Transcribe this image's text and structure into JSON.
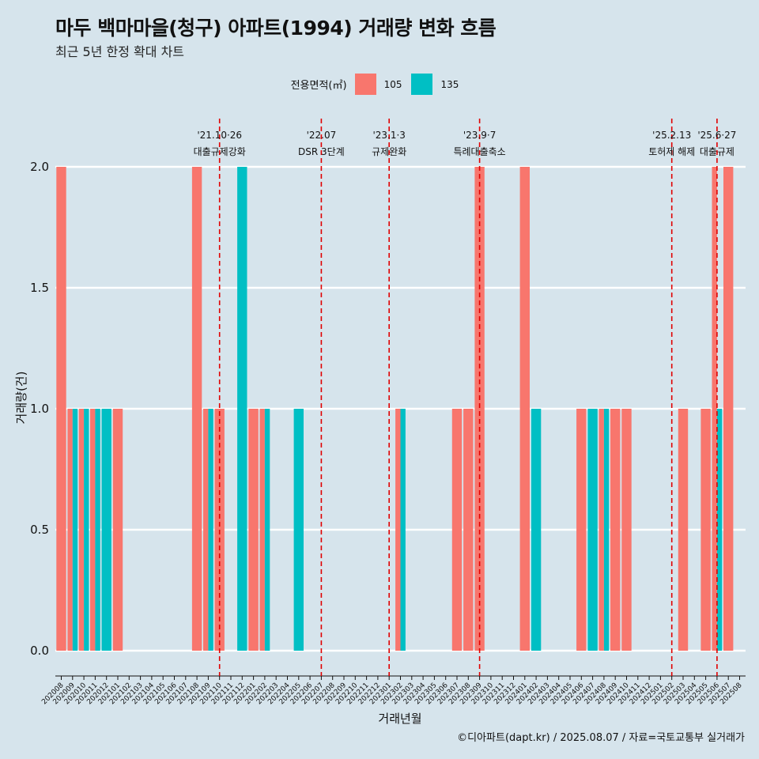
{
  "title": "마두 백마마을(청구) 아파트(1994) 거래량 변화 흐름",
  "subtitle": "최근 5년 한정 확대 차트",
  "legend": {
    "title": "전용면적(㎡)",
    "items": [
      {
        "label": "105",
        "color": "#F8766D"
      },
      {
        "label": "135",
        "color": "#00BFC4"
      }
    ]
  },
  "caption": "©디아파트(dapt.kr) / 2025.08.07 / 자료=국토교통부 실거래가",
  "chart_data": {
    "type": "bar",
    "xlabel": "거래년월",
    "ylabel": "거래량(건)",
    "ylim": [
      0,
      2
    ],
    "yticks": [
      "0.0",
      "0.5",
      "1.0",
      "1.5",
      "2.0"
    ],
    "grid": true,
    "legend_position": "top",
    "categories": [
      "202008",
      "202009",
      "202010",
      "202011",
      "202012",
      "202101",
      "202102",
      "202103",
      "202104",
      "202105",
      "202106",
      "202107",
      "202108",
      "202109",
      "202110",
      "202111",
      "202112",
      "202201",
      "202202",
      "202203",
      "202204",
      "202205",
      "202206",
      "202207",
      "202208",
      "202209",
      "202210",
      "202211",
      "202212",
      "202301",
      "202302",
      "202303",
      "202304",
      "202305",
      "202306",
      "202307",
      "202308",
      "202309",
      "202310",
      "202311",
      "202312",
      "202401",
      "202402",
      "202403",
      "202404",
      "202405",
      "202406",
      "202407",
      "202408",
      "202409",
      "202410",
      "202411",
      "202412",
      "202501",
      "202502",
      "202503",
      "202504",
      "202505",
      "202506",
      "202507",
      "202508"
    ],
    "series": [
      {
        "name": "105",
        "color": "#F8766D",
        "values": [
          2,
          1,
          1,
          1,
          0,
          1,
          0,
          0,
          0,
          0,
          0,
          0,
          2,
          1,
          1,
          0,
          0,
          1,
          1,
          0,
          0,
          0,
          0,
          0,
          0,
          0,
          0,
          0,
          0,
          0,
          1,
          0,
          0,
          0,
          0,
          1,
          1,
          2,
          0,
          0,
          0,
          2,
          0,
          0,
          0,
          0,
          1,
          0,
          1,
          1,
          1,
          0,
          0,
          0,
          0,
          1,
          0,
          1,
          2,
          2,
          0
        ]
      },
      {
        "name": "135",
        "color": "#00BFC4",
        "values": [
          0,
          1,
          1,
          1,
          1,
          0,
          0,
          0,
          0,
          0,
          0,
          0,
          0,
          1,
          0,
          0,
          2,
          0,
          1,
          0,
          0,
          1,
          0,
          0,
          0,
          0,
          0,
          0,
          0,
          0,
          1,
          0,
          0,
          0,
          0,
          0,
          0,
          0,
          0,
          0,
          0,
          0,
          1,
          0,
          0,
          0,
          0,
          1,
          1,
          0,
          0,
          0,
          0,
          0,
          0,
          0,
          0,
          0,
          1,
          0,
          0
        ]
      }
    ],
    "annotations": [
      {
        "x": "202110",
        "line1": "'21.10·26",
        "line2": "대출규제강화"
      },
      {
        "x": "202207",
        "line1": "'22.07",
        "line2": "DSR 3단계"
      },
      {
        "x": "202301",
        "line1": "'23.1·3",
        "line2": "규제완화"
      },
      {
        "x": "202309",
        "line1": "'23.9·7",
        "line2": "특례대출축소"
      },
      {
        "x": "202502",
        "line1": "'25.2.13",
        "line2": "토허제 해제"
      },
      {
        "x": "202506",
        "line1": "'25.6·27",
        "line2": "대출규제"
      }
    ]
  }
}
